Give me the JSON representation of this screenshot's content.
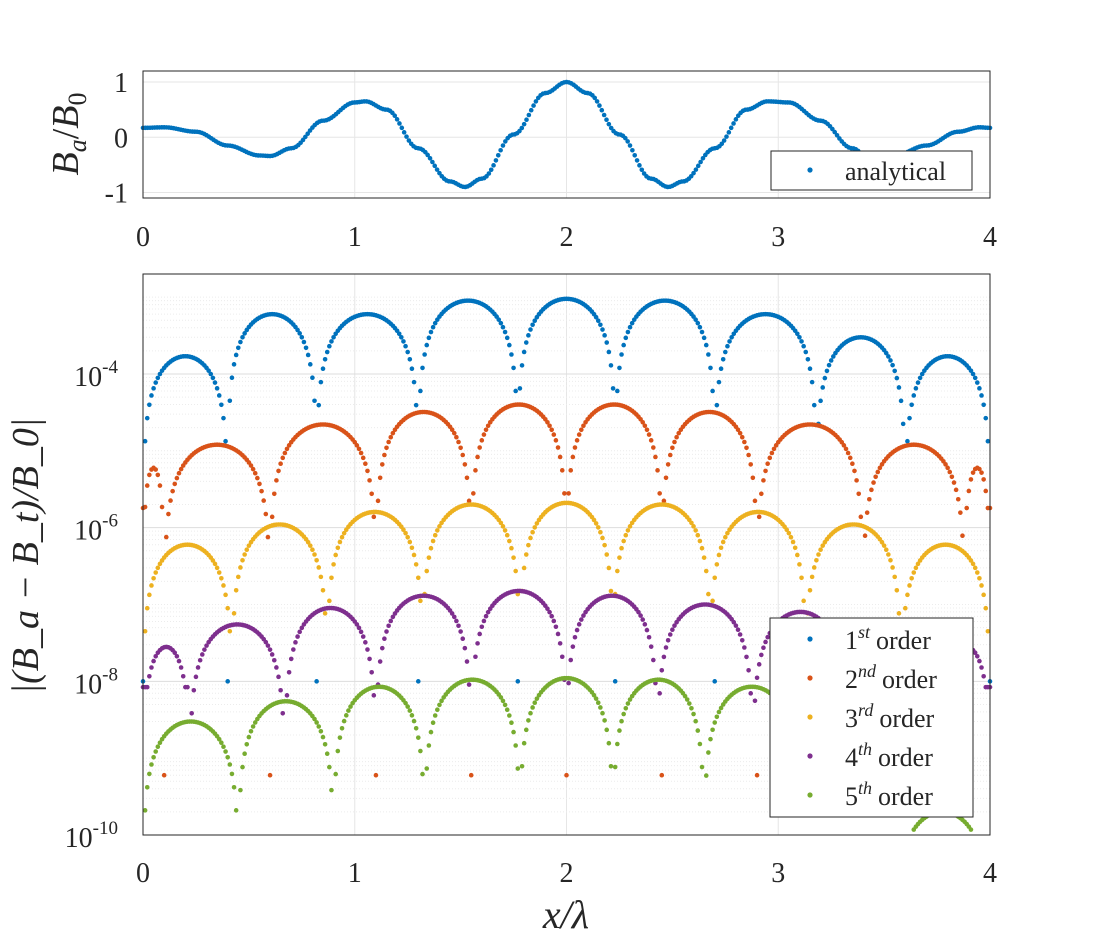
{
  "chart_data": [
    {
      "type": "scatter",
      "ylabel": "B_a/B_0",
      "ylabel_parts": {
        "main": "B",
        "sub1": "a",
        "slash": "/",
        "main2": "B",
        "sub2": "0"
      },
      "xlim": [
        0,
        4
      ],
      "ylim": [
        -1.1,
        1.2
      ],
      "xticks": [
        "0",
        "1",
        "2",
        "3",
        "4"
      ],
      "yticks": [
        "1",
        "0",
        "-1"
      ],
      "grid": true,
      "legend": "bottom-right",
      "series": [
        {
          "name": "analytical",
          "color": "#0072BD",
          "x": [
            0,
            0.1,
            0.25,
            0.4,
            0.55,
            0.6,
            0.7,
            0.85,
            1.0,
            1.05,
            1.15,
            1.3,
            1.45,
            1.52,
            1.6,
            1.75,
            1.9,
            2.0,
            2.1,
            2.25,
            2.4,
            2.48,
            2.55,
            2.7,
            2.85,
            2.95,
            3.05,
            3.2,
            3.35,
            3.42,
            3.55,
            3.7,
            3.85,
            3.95,
            4.0
          ],
          "y": [
            0.17,
            0.18,
            0.1,
            -0.15,
            -0.33,
            -0.34,
            -0.2,
            0.3,
            0.63,
            0.65,
            0.5,
            -0.2,
            -0.8,
            -0.9,
            -0.75,
            0.05,
            0.8,
            1.0,
            0.8,
            0.05,
            -0.75,
            -0.9,
            -0.8,
            -0.2,
            0.5,
            0.65,
            0.63,
            0.3,
            -0.2,
            -0.34,
            -0.33,
            -0.15,
            0.1,
            0.18,
            0.17
          ]
        }
      ]
    },
    {
      "type": "scatter",
      "xlabel": "x/λ",
      "ylabel": "|(B_a − B_t)/B_0|",
      "yscale": "log",
      "xlim": [
        0,
        4
      ],
      "ylim": [
        1e-10,
        0.002
      ],
      "xticks": [
        "0",
        "1",
        "2",
        "3",
        "4"
      ],
      "yticks": [
        {
          "base": "10",
          "exp": "-4"
        },
        {
          "base": "10",
          "exp": "-6"
        },
        {
          "base": "10",
          "exp": "-8"
        },
        {
          "base": "10",
          "exp": "-10"
        }
      ],
      "grid": true,
      "legend": "bottom-right",
      "series": [
        {
          "name": "1st order",
          "legend_parts": {
            "num": "1",
            "sup": "st",
            "word": "order"
          },
          "color": "#0072BD",
          "peaks_x": [
            0.1,
            0.63,
            1.1,
            1.55,
            2.0,
            2.45,
            2.9,
            3.37,
            3.9
          ],
          "peaks_y": [
            0.00017,
            0.0006,
            0.0006,
            0.0009,
            0.00095,
            0.0009,
            0.0006,
            0.0003,
            0.00017
          ],
          "zeros_x": [
            0,
            0.4,
            0.82,
            1.3,
            1.77,
            2.23,
            2.7,
            3.18,
            3.6,
            4.0
          ],
          "endpoint_y": 0.0001
        },
        {
          "name": "2nd order",
          "legend_parts": {
            "num": "2",
            "sup": "nd",
            "word": "order"
          },
          "color": "#D95319",
          "peaks_x": [
            0.35,
            0.87,
            1.32,
            1.78,
            2.25,
            2.68,
            3.13,
            3.6
          ],
          "peaks_y": [
            1.2e-05,
            2.2e-05,
            3.2e-05,
            4e-05,
            4e-05,
            3.2e-05,
            2.2e-05,
            1.2e-05
          ],
          "zeros_x": [
            0.1,
            0.6,
            1.1,
            1.55,
            2.0,
            2.45,
            2.9,
            3.4,
            3.88
          ],
          "endpoint_y": 6e-06
        },
        {
          "name": "3rd order",
          "legend_parts": {
            "num": "3",
            "sup": "rd",
            "word": "order"
          },
          "color": "#EDB120",
          "peaks_x": [
            0.18,
            0.65,
            1.1,
            1.55,
            2.0,
            2.45,
            2.9,
            3.33,
            3.78
          ],
          "peaks_y": [
            6e-07,
            1.1e-06,
            1.6e-06,
            2e-06,
            2.1e-06,
            2e-06,
            1.6e-06,
            1.1e-06,
            6e-07
          ],
          "zeros_x": [
            0,
            0.42,
            0.87,
            1.32,
            1.78,
            2.22,
            2.68,
            3.13,
            3.58,
            4.0
          ],
          "endpoint_y": 1.3e-07
        },
        {
          "name": "4th order",
          "legend_parts": {
            "num": "4",
            "sup": "th",
            "word": "order"
          },
          "color": "#7E2F8E",
          "peaks_x": [
            0.45,
            0.9,
            1.33,
            1.78,
            2.2,
            2.65,
            3.1,
            3.55
          ],
          "peaks_y": [
            5.5e-08,
            9e-08,
            1.3e-07,
            1.5e-07,
            1.3e-07,
            1e-07,
            8e-08,
            5e-08
          ],
          "zeros_x": [
            0.22,
            0.67,
            1.1,
            1.55,
            2.0,
            2.43,
            2.88,
            3.33,
            3.78
          ],
          "endpoint_y": 2.8e-08
        },
        {
          "name": "5th order",
          "legend_parts": {
            "num": "5",
            "sup": "th",
            "word": "order"
          },
          "color": "#77AC30",
          "peaks_x": [
            0.25,
            0.68,
            1.12,
            1.55,
            2.0,
            2.43,
            2.88,
            3.33
          ],
          "peaks_y": [
            3e-09,
            5.5e-09,
            8.5e-09,
            1.05e-08,
            1.1e-08,
            1.05e-08,
            8.5e-09,
            4e-09
          ],
          "zeros_x": [
            0,
            0.45,
            0.9,
            1.33,
            1.78,
            2.22,
            2.65,
            3.1,
            3.55,
            4.0
          ],
          "endpoint_y": 2e-10
        }
      ]
    }
  ]
}
